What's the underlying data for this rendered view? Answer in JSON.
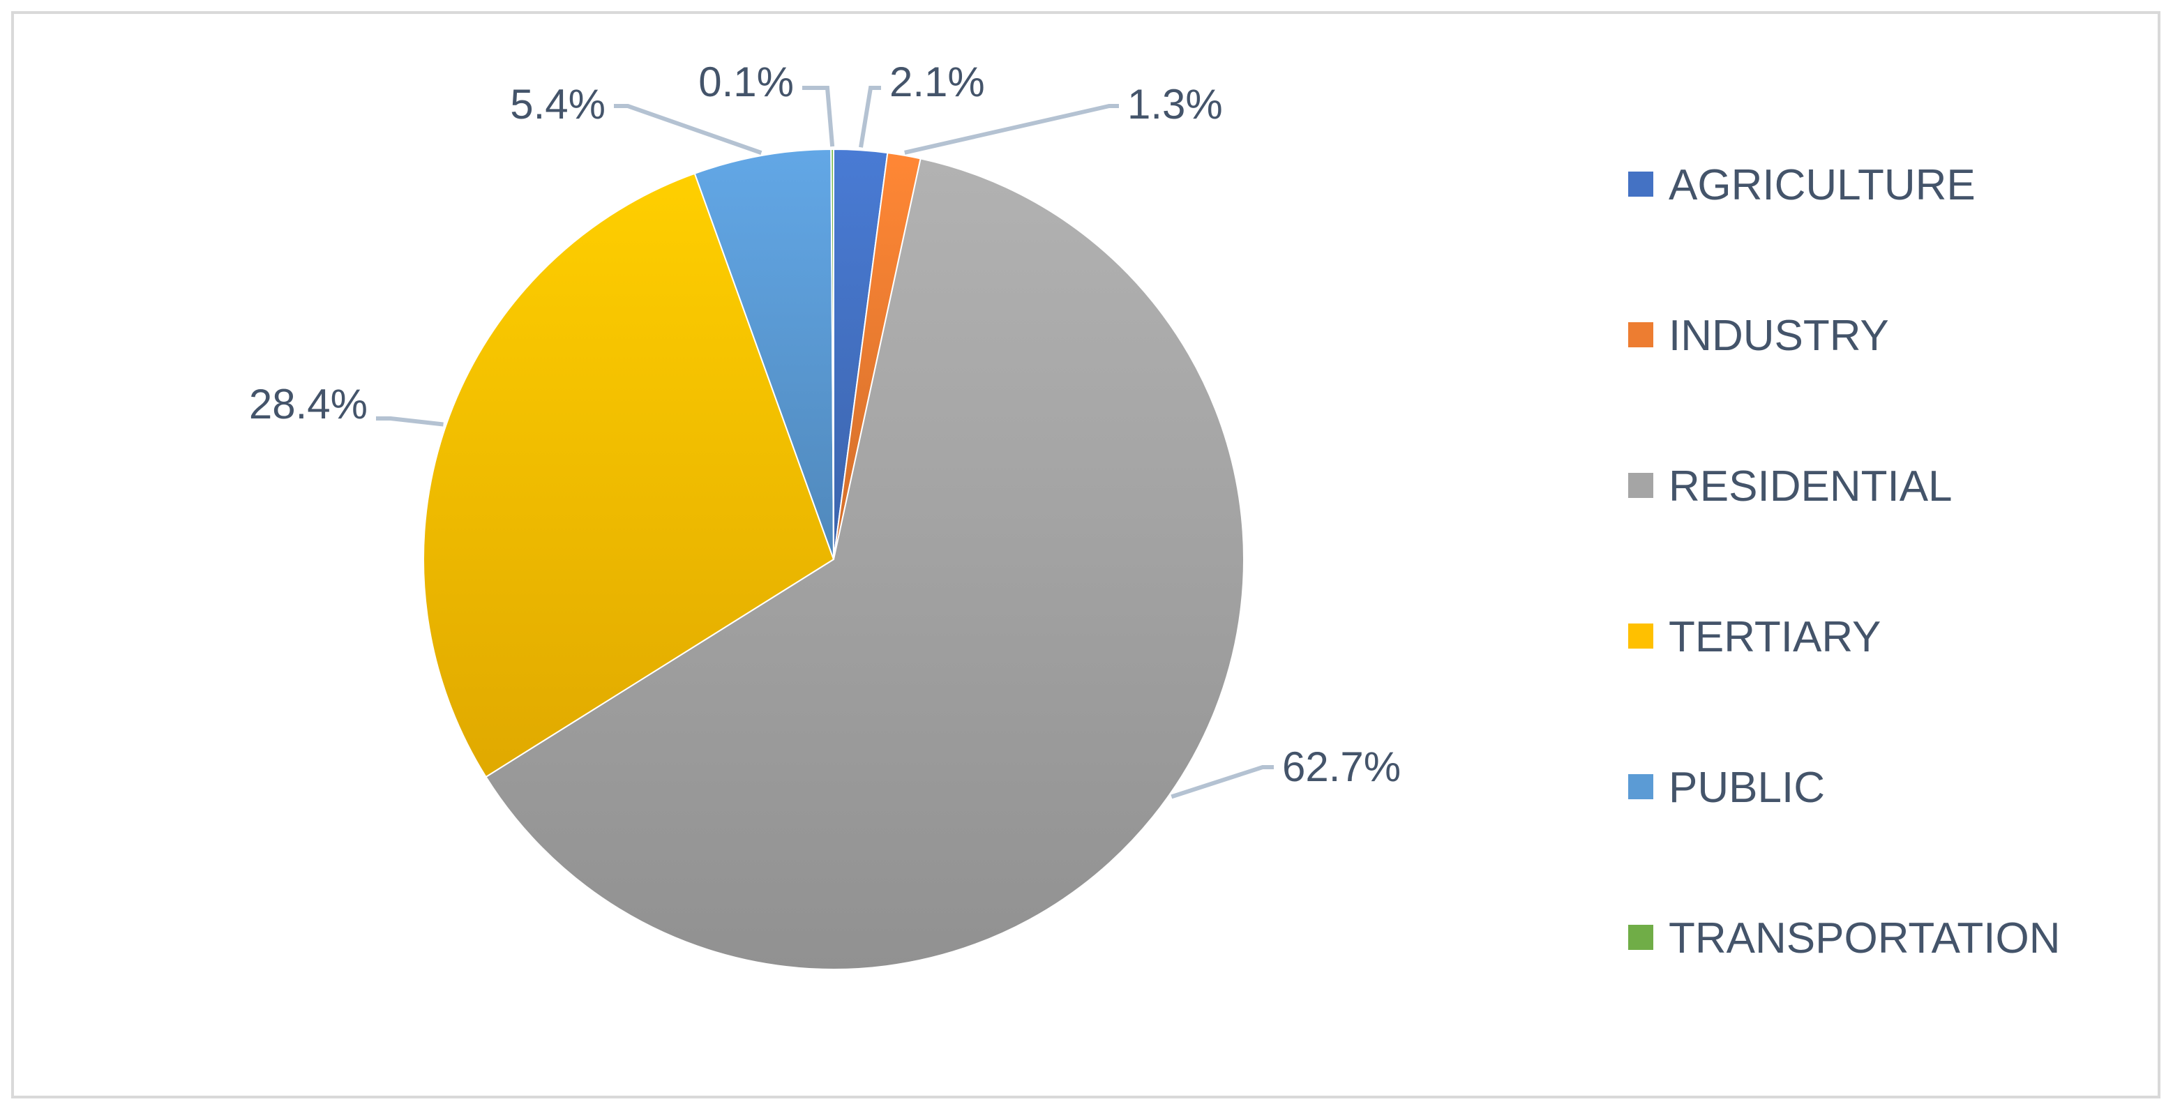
{
  "chart_data": {
    "type": "pie",
    "title": "",
    "categories": [
      "AGRICULTURE",
      "INDUSTRY",
      "RESIDENTIAL",
      "TERTIARY",
      "PUBLIC",
      "TRANSPORTATION"
    ],
    "values": [
      2.1,
      1.3,
      62.7,
      28.4,
      5.4,
      0.1
    ],
    "data_labels": [
      "2.1%",
      "1.3%",
      "62.7%",
      "28.4%",
      "5.4%",
      "0.1%"
    ],
    "colors": [
      "#4472c4",
      "#ed7d31",
      "#a5a5a5",
      "#ffc000",
      "#5b9bd5",
      "#70ad47"
    ],
    "legend_position": "right",
    "start_angle": "top, clockwise"
  }
}
